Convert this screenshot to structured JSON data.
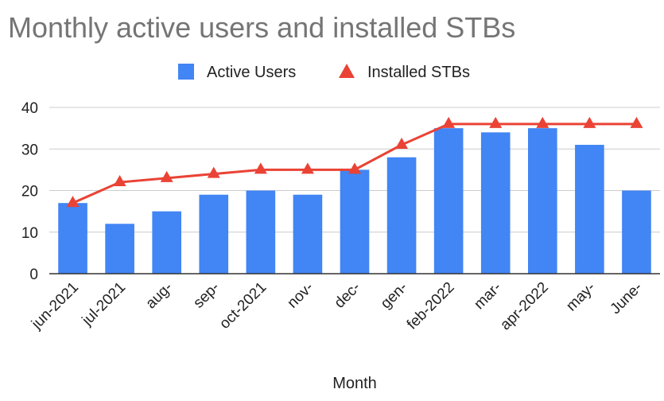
{
  "chart_data": {
    "type": "bar",
    "title": "Monthly active users and installed STBs",
    "xlabel": "Month",
    "ylabel": "",
    "ylim": [
      0,
      40
    ],
    "yticks": [
      0,
      10,
      20,
      30,
      40
    ],
    "grid": true,
    "legend_position": "top",
    "categories": [
      "jun-2021",
      "jul-2021",
      "aug-",
      "sep-",
      "oct-2021",
      "nov-",
      "dec-",
      "gen-",
      "feb-2022",
      "mar-",
      "apr-2022",
      "may-",
      "June-"
    ],
    "series": [
      {
        "name": "Active Users",
        "type": "bar",
        "color": "#4285f4",
        "values": [
          17,
          12,
          15,
          19,
          20,
          19,
          25,
          28,
          35,
          34,
          35,
          31,
          20
        ]
      },
      {
        "name": "Installed STBs",
        "type": "line",
        "marker": "triangle",
        "color": "#ea4335",
        "values": [
          17,
          22,
          23,
          24,
          25,
          25,
          25,
          31,
          36,
          36,
          36,
          36,
          36
        ]
      }
    ]
  }
}
